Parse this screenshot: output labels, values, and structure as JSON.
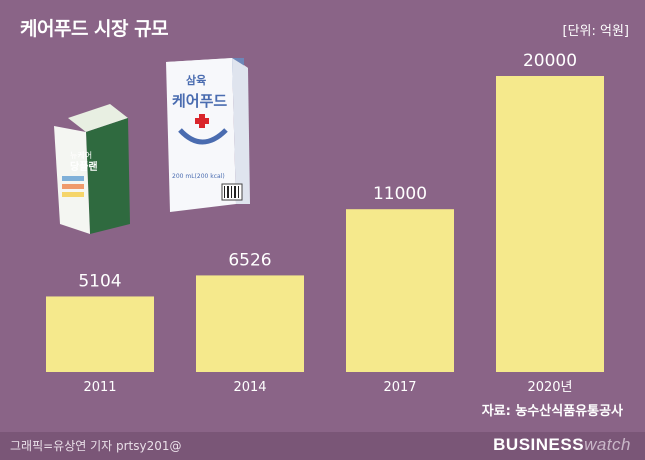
{
  "title": "케어푸드 시장 규모",
  "unit": "[단위: 억원]",
  "source": "자료: 농수산식품유통공사",
  "credit": "그래픽=유상연 기자 prtsy201@",
  "brand": {
    "part1": "BUSINESS",
    "part2": "watch"
  },
  "products": {
    "left_pack": {
      "brand": "뉴케어",
      "name": "당플랜"
    },
    "right_pack": {
      "brand": "삼육",
      "name": "케어푸드",
      "volume": "200 mL(200 kcal)"
    }
  },
  "colors": {
    "background": "#8a6487",
    "bar": "#f5e98c",
    "text": "#ffffff"
  },
  "chart_data": {
    "type": "bar",
    "categories": [
      "2011",
      "2014",
      "2017",
      "2020년"
    ],
    "values": [
      5104,
      6526,
      11000,
      20000
    ],
    "data_labels": [
      "5104",
      "6526",
      "11000",
      "20000"
    ],
    "ylim": [
      0,
      20000
    ],
    "grid": false,
    "legend": "none"
  }
}
